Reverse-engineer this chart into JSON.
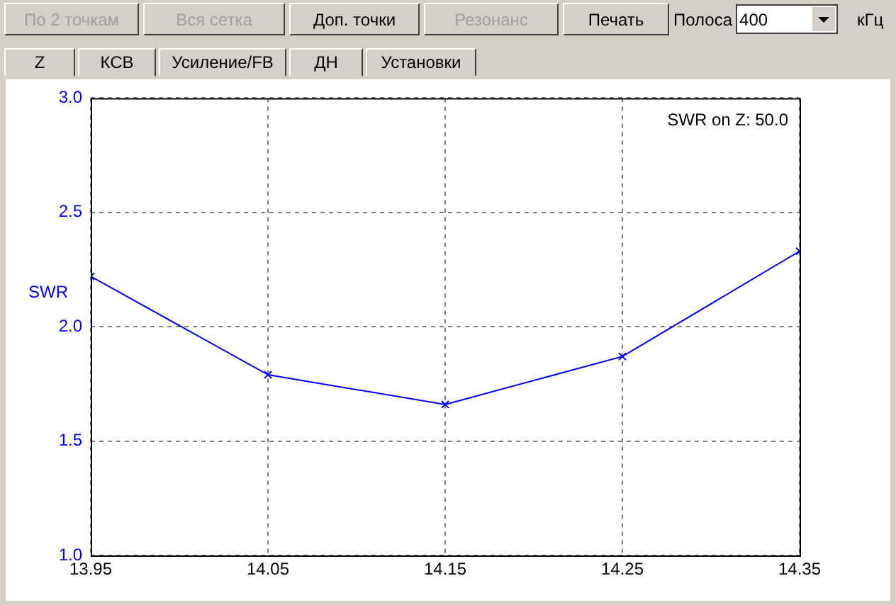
{
  "chart_data": {
    "type": "line",
    "ylabel": "SWR",
    "x": [
      13.95,
      14.05,
      14.15,
      14.25,
      14.35
    ],
    "series": [
      {
        "color": "#0000ff",
        "values": [
          2.22,
          1.79,
          1.66,
          1.87,
          2.33
        ]
      }
    ],
    "xlim": [
      13.95,
      14.35
    ],
    "xticks": [
      13.95,
      14.05,
      14.15,
      14.25,
      14.35
    ],
    "ylim": [
      1.0,
      3.0
    ],
    "yticks": [
      {
        "value": 1.0,
        "label": "1.0"
      },
      {
        "value": 1.5,
        "label": "1.5"
      },
      {
        "value": 2.0,
        "label": "2.0"
      },
      {
        "value": 2.5,
        "label": "2.5"
      },
      {
        "value": 3.0,
        "label": "3.0"
      }
    ],
    "grid": true,
    "legend": false,
    "marker": "cross",
    "line_style": "solid",
    "annotations": [
      "SWR on Z: 50.0",
      "По 2 точкам",
      "Вся сетка",
      "Доп. точки",
      "Резонанс",
      "Печать",
      "Полоса",
      "400",
      "кГц",
      "Z",
      "КСВ",
      "Усиление/FB",
      "ДН",
      "Установки"
    ]
  }
}
